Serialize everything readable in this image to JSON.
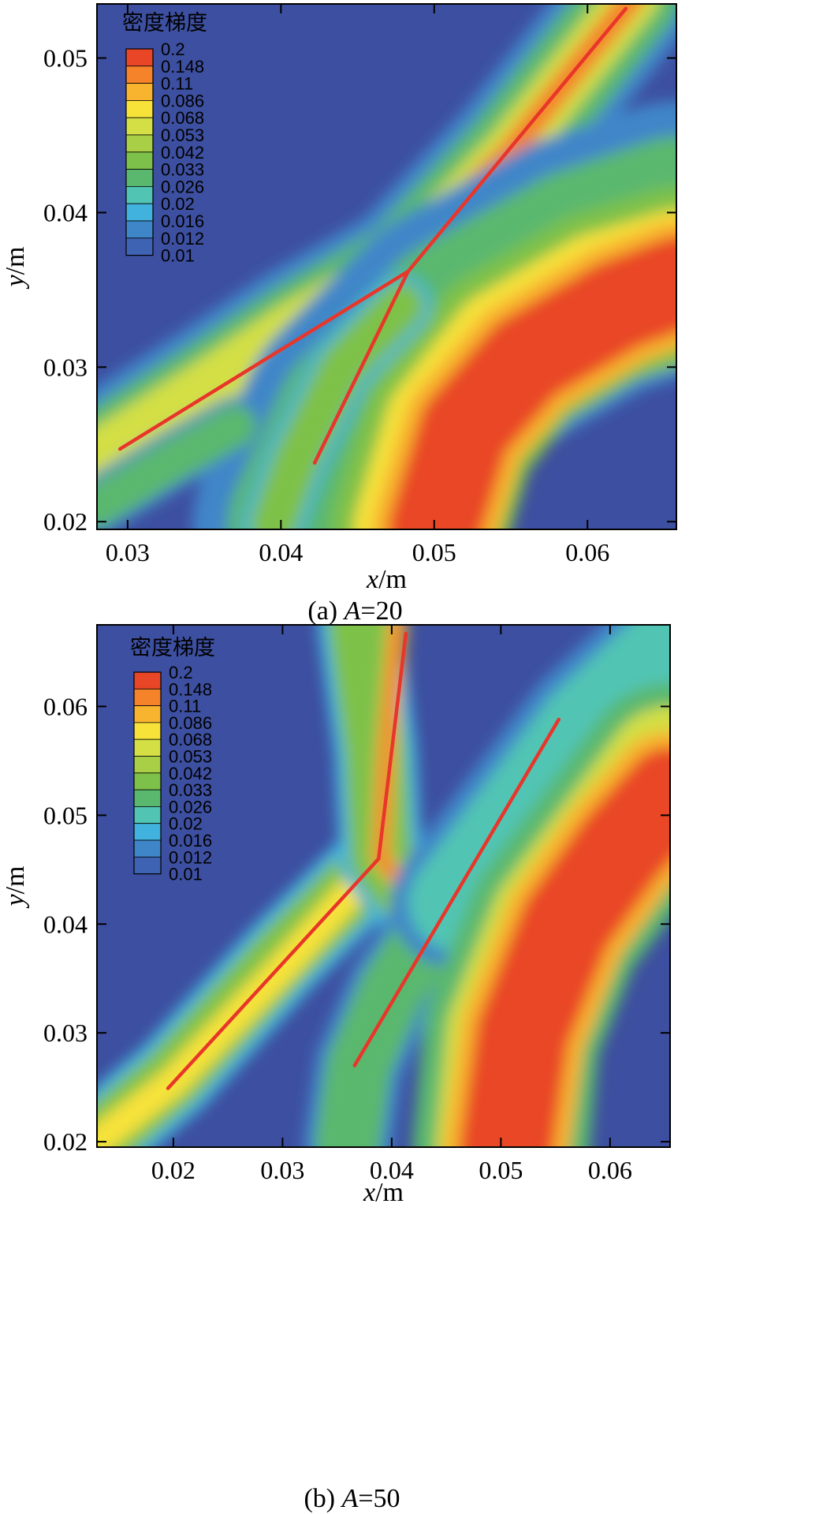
{
  "palette": {
    "background_low": "#3d4fa0",
    "levels": [
      "#3d4fa0",
      "#3f63b3",
      "#3f86c9",
      "#41b2dd",
      "#51c4b4",
      "#5ab86e",
      "#5fb34f",
      "#7ec14a",
      "#a9cf47",
      "#d3df45",
      "#f7e23a",
      "#f8b32f",
      "#f5832a",
      "#e94628"
    ],
    "shock_line": "#e8362a"
  },
  "chart_data": [
    {
      "type": "heatmap",
      "caption_prefix": "(a) ",
      "caption_var": "A",
      "caption_suffix": "=20",
      "xlabel_var": "x",
      "xlabel_unit": "/m",
      "ylabel_var": "y",
      "ylabel_unit": "/m",
      "xlim": [
        0.028,
        0.0658
      ],
      "ylim": [
        0.0195,
        0.0535
      ],
      "xticks": [
        "0.03",
        "0.04",
        "0.05",
        "0.06"
      ],
      "xtick_values": [
        0.03,
        0.04,
        0.05,
        0.06
      ],
      "yticks": [
        "0.02",
        "0.03",
        "0.04",
        "0.05"
      ],
      "ytick_values": [
        0.02,
        0.03,
        0.04,
        0.05
      ],
      "legend": {
        "title": "密度梯度",
        "position": "top-left",
        "levels": [
          "0.2",
          "0.148",
          "0.11",
          "0.086",
          "0.068",
          "0.053",
          "0.042",
          "0.033",
          "0.026",
          "0.02",
          "0.016",
          "0.012",
          "0.01"
        ]
      },
      "bands": [
        {
          "level": 0.033,
          "width": 0.006,
          "points": [
            [
              0.028,
              0.024
            ],
            [
              0.035,
              0.0285
            ],
            [
              0.041,
              0.0325
            ],
            [
              0.048,
              0.0365
            ],
            [
              0.055,
              0.044
            ],
            [
              0.063,
              0.054
            ]
          ]
        },
        {
          "level": 0.068,
          "width": 0.0034,
          "points": [
            [
              0.028,
              0.0242
            ],
            [
              0.035,
              0.0287
            ],
            [
              0.041,
              0.0327
            ],
            [
              0.048,
              0.0367
            ],
            [
              0.055,
              0.044
            ],
            [
              0.063,
              0.054
            ]
          ]
        },
        {
          "level": 0.148,
          "width": 0.0016,
          "points": [
            [
              0.045,
              0.035
            ],
            [
              0.048,
              0.037
            ],
            [
              0.055,
              0.044
            ],
            [
              0.063,
              0.054
            ]
          ]
        },
        {
          "level": 0.033,
          "width": 0.013,
          "points": [
            [
              0.043,
              0.0195
            ],
            [
              0.046,
              0.026
            ],
            [
              0.052,
              0.032
            ],
            [
              0.06,
              0.0365
            ],
            [
              0.066,
              0.0385
            ]
          ]
        },
        {
          "level": 0.086,
          "width": 0.0085,
          "points": [
            [
              0.049,
              0.0195
            ],
            [
              0.051,
              0.026
            ],
            [
              0.055,
              0.031
            ],
            [
              0.061,
              0.0345
            ],
            [
              0.066,
              0.036
            ]
          ]
        },
        {
          "level": 0.2,
          "width": 0.006,
          "points": [
            [
              0.05,
              0.0195
            ],
            [
              0.052,
              0.026
            ],
            [
              0.056,
              0.0305
            ],
            [
              0.062,
              0.034
            ],
            [
              0.066,
              0.0355
            ]
          ]
        },
        {
          "level": 0.042,
          "width": 0.003,
          "points": [
            [
              0.0395,
              0.0198
            ],
            [
              0.041,
              0.024
            ],
            [
              0.044,
              0.03
            ],
            [
              0.0478,
              0.034
            ]
          ]
        },
        {
          "level": 0.033,
          "width": 0.0028,
          "points": [
            [
              0.028,
              0.021
            ],
            [
              0.033,
              0.024
            ],
            [
              0.037,
              0.0262
            ]
          ]
        }
      ],
      "shock_lines": [
        {
          "x": [
            0.0295,
            0.0483
          ],
          "y": [
            0.0247,
            0.0362
          ]
        },
        {
          "x": [
            0.0422,
            0.0483
          ],
          "y": [
            0.0238,
            0.0362
          ]
        },
        {
          "x": [
            0.0483,
            0.0625
          ],
          "y": [
            0.0362,
            0.0532
          ]
        }
      ]
    },
    {
      "type": "heatmap",
      "caption_prefix": "(b) ",
      "caption_var": "A",
      "caption_suffix": "=50",
      "xlabel_var": "x",
      "xlabel_unit": "/m",
      "ylabel_var": "y",
      "ylabel_unit": "/m",
      "xlim": [
        0.013,
        0.0655
      ],
      "ylim": [
        0.0195,
        0.0675
      ],
      "xticks": [
        "0.02",
        "0.03",
        "0.04",
        "0.05",
        "0.06"
      ],
      "xtick_values": [
        0.02,
        0.03,
        0.04,
        0.05,
        0.06
      ],
      "yticks": [
        "0.02",
        "0.03",
        "0.04",
        "0.05",
        "0.06"
      ],
      "ytick_values": [
        0.02,
        0.03,
        0.04,
        0.05,
        0.06
      ],
      "legend": {
        "title": "密度梯度",
        "position": "top-left",
        "levels": [
          "0.2",
          "0.148",
          "0.11",
          "0.086",
          "0.068",
          "0.053",
          "0.042",
          "0.033",
          "0.026",
          "0.02",
          "0.016",
          "0.012",
          "0.01"
        ]
      },
      "bands": [
        {
          "level": 0.042,
          "width": 0.0058,
          "points": [
            [
              0.013,
              0.02
            ],
            [
              0.02,
              0.026
            ],
            [
              0.03,
              0.037
            ],
            [
              0.039,
              0.046
            ]
          ]
        },
        {
          "level": 0.086,
          "width": 0.0028,
          "points": [
            [
              0.013,
              0.02
            ],
            [
              0.02,
              0.0255
            ],
            [
              0.03,
              0.036
            ],
            [
              0.039,
              0.046
            ]
          ]
        },
        {
          "level": 0.042,
          "width": 0.0056,
          "points": [
            [
              0.037,
              0.0675
            ],
            [
              0.0385,
              0.056
            ],
            [
              0.039,
              0.046
            ],
            [
              0.042,
              0.042
            ],
            [
              0.044,
              0.0405
            ]
          ]
        },
        {
          "level": 0.148,
          "width": 0.0014,
          "points": [
            [
              0.0405,
              0.0675
            ],
            [
              0.0395,
              0.056
            ],
            [
              0.039,
              0.046
            ],
            [
              0.042,
              0.0425
            ],
            [
              0.0435,
              0.041
            ]
          ]
        },
        {
          "level": 0.033,
          "width": 0.006,
          "points": [
            [
              0.036,
              0.02
            ],
            [
              0.037,
              0.027
            ],
            [
              0.04,
              0.034
            ],
            [
              0.044,
              0.04
            ]
          ]
        },
        {
          "level": 0.026,
          "width": 0.009,
          "points": [
            [
              0.046,
              0.042
            ],
            [
              0.052,
              0.05
            ],
            [
              0.058,
              0.058
            ],
            [
              0.0655,
              0.065
            ]
          ]
        },
        {
          "level": 0.068,
          "width": 0.012,
          "points": [
            [
              0.05,
              0.0195
            ],
            [
              0.051,
              0.03
            ],
            [
              0.055,
              0.04
            ],
            [
              0.061,
              0.048
            ],
            [
              0.0655,
              0.054
            ]
          ]
        },
        {
          "level": 0.2,
          "width": 0.0085,
          "points": [
            [
              0.0505,
              0.0195
            ],
            [
              0.052,
              0.03
            ],
            [
              0.056,
              0.04
            ],
            [
              0.061,
              0.047
            ],
            [
              0.0655,
              0.052
            ]
          ]
        }
      ],
      "shock_lines": [
        {
          "x": [
            0.0195,
            0.0388
          ],
          "y": [
            0.0249,
            0.046
          ]
        },
        {
          "x": [
            0.0388,
            0.0413
          ],
          "y": [
            0.046,
            0.0667
          ]
        },
        {
          "x": [
            0.0366,
            0.0553
          ],
          "y": [
            0.027,
            0.0588
          ]
        }
      ]
    }
  ]
}
